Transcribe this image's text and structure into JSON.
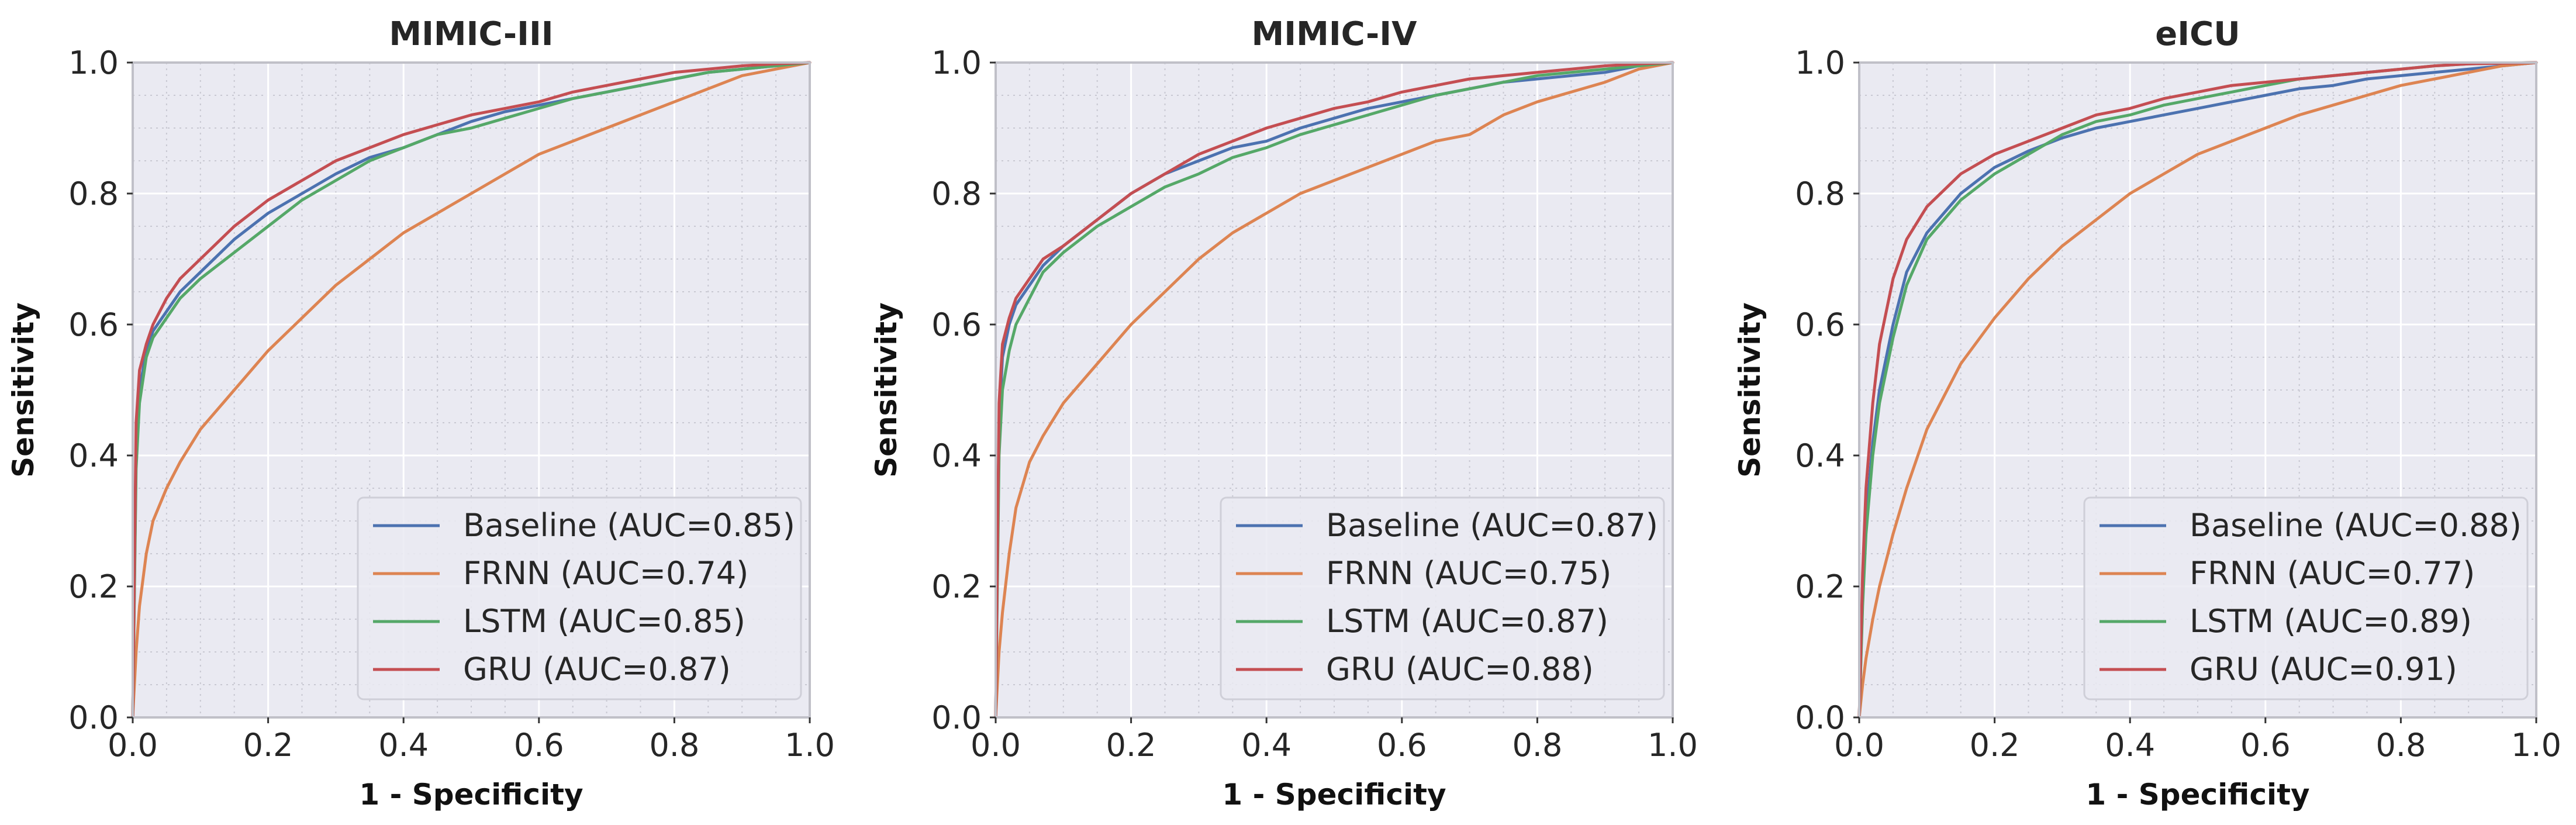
{
  "chart_data": [
    {
      "type": "line",
      "title": "MIMIC-III",
      "xlabel": "1 - Specificity",
      "ylabel": "Sensitivity",
      "xlim": [
        0,
        1
      ],
      "ylim": [
        0,
        1
      ],
      "ticks": [
        "0.0",
        "0.2",
        "0.4",
        "0.6",
        "0.8",
        "1.0"
      ],
      "grid": true,
      "legend_position": "lower-right",
      "series": [
        {
          "name": "Baseline (AUC=0.85)",
          "color": "#4c72b0",
          "x": [
            0,
            0.005,
            0.01,
            0.02,
            0.03,
            0.05,
            0.07,
            0.1,
            0.15,
            0.2,
            0.25,
            0.3,
            0.35,
            0.4,
            0.45,
            0.5,
            0.55,
            0.6,
            0.65,
            0.7,
            0.75,
            0.8,
            0.85,
            0.9,
            0.95,
            1.0
          ],
          "y": [
            0,
            0.4,
            0.5,
            0.56,
            0.59,
            0.62,
            0.65,
            0.68,
            0.73,
            0.77,
            0.8,
            0.83,
            0.855,
            0.87,
            0.89,
            0.91,
            0.925,
            0.935,
            0.945,
            0.955,
            0.965,
            0.975,
            0.985,
            0.99,
            0.995,
            1.0
          ]
        },
        {
          "name": "FRNN (AUC=0.74)",
          "color": "#dd8452",
          "x": [
            0,
            0.005,
            0.01,
            0.02,
            0.03,
            0.05,
            0.07,
            0.1,
            0.15,
            0.2,
            0.25,
            0.3,
            0.35,
            0.4,
            0.45,
            0.5,
            0.55,
            0.6,
            0.65,
            0.7,
            0.75,
            0.8,
            0.85,
            0.9,
            0.95,
            1.0
          ],
          "y": [
            0,
            0.1,
            0.17,
            0.25,
            0.3,
            0.35,
            0.39,
            0.44,
            0.5,
            0.56,
            0.61,
            0.66,
            0.7,
            0.74,
            0.77,
            0.8,
            0.83,
            0.86,
            0.88,
            0.9,
            0.92,
            0.94,
            0.96,
            0.98,
            0.99,
            1.0
          ]
        },
        {
          "name": "LSTM (AUC=0.85)",
          "color": "#55a868",
          "x": [
            0,
            0.005,
            0.01,
            0.02,
            0.03,
            0.05,
            0.07,
            0.1,
            0.15,
            0.2,
            0.25,
            0.3,
            0.35,
            0.4,
            0.45,
            0.5,
            0.55,
            0.6,
            0.65,
            0.7,
            0.75,
            0.8,
            0.85,
            0.9,
            0.95,
            1.0
          ],
          "y": [
            0,
            0.38,
            0.48,
            0.55,
            0.58,
            0.61,
            0.64,
            0.67,
            0.71,
            0.75,
            0.79,
            0.82,
            0.85,
            0.87,
            0.89,
            0.9,
            0.915,
            0.93,
            0.945,
            0.955,
            0.965,
            0.975,
            0.985,
            0.99,
            0.995,
            1.0
          ]
        },
        {
          "name": "GRU (AUC=0.87)",
          "color": "#c44e52",
          "x": [
            0,
            0.005,
            0.01,
            0.02,
            0.03,
            0.05,
            0.07,
            0.1,
            0.15,
            0.2,
            0.25,
            0.3,
            0.35,
            0.4,
            0.45,
            0.5,
            0.55,
            0.6,
            0.65,
            0.7,
            0.75,
            0.8,
            0.85,
            0.9,
            0.95,
            1.0
          ],
          "y": [
            0,
            0.45,
            0.53,
            0.57,
            0.6,
            0.64,
            0.67,
            0.7,
            0.75,
            0.79,
            0.82,
            0.85,
            0.87,
            0.89,
            0.905,
            0.92,
            0.93,
            0.94,
            0.955,
            0.965,
            0.975,
            0.985,
            0.99,
            0.995,
            0.998,
            1.0
          ]
        }
      ]
    },
    {
      "type": "line",
      "title": "MIMIC-IV",
      "xlabel": "1 - Specificity",
      "ylabel": "Sensitivity",
      "xlim": [
        0,
        1
      ],
      "ylim": [
        0,
        1
      ],
      "ticks": [
        "0.0",
        "0.2",
        "0.4",
        "0.6",
        "0.8",
        "1.0"
      ],
      "grid": true,
      "legend_position": "lower-right",
      "series": [
        {
          "name": "Baseline (AUC=0.87)",
          "color": "#4c72b0",
          "x": [
            0,
            0.005,
            0.01,
            0.02,
            0.03,
            0.05,
            0.07,
            0.1,
            0.15,
            0.2,
            0.25,
            0.3,
            0.35,
            0.4,
            0.45,
            0.5,
            0.55,
            0.6,
            0.65,
            0.7,
            0.75,
            0.8,
            0.85,
            0.9,
            0.95,
            1.0
          ],
          "y": [
            0,
            0.45,
            0.55,
            0.6,
            0.63,
            0.66,
            0.69,
            0.72,
            0.76,
            0.8,
            0.83,
            0.85,
            0.87,
            0.88,
            0.9,
            0.915,
            0.93,
            0.94,
            0.95,
            0.96,
            0.97,
            0.975,
            0.98,
            0.985,
            0.995,
            1.0
          ]
        },
        {
          "name": "FRNN (AUC=0.75)",
          "color": "#dd8452",
          "x": [
            0,
            0.005,
            0.01,
            0.02,
            0.03,
            0.05,
            0.07,
            0.1,
            0.15,
            0.2,
            0.25,
            0.3,
            0.35,
            0.4,
            0.45,
            0.5,
            0.55,
            0.6,
            0.65,
            0.7,
            0.75,
            0.8,
            0.85,
            0.9,
            0.95,
            1.0
          ],
          "y": [
            0,
            0.1,
            0.16,
            0.25,
            0.32,
            0.39,
            0.43,
            0.48,
            0.54,
            0.6,
            0.65,
            0.7,
            0.74,
            0.77,
            0.8,
            0.82,
            0.84,
            0.86,
            0.88,
            0.89,
            0.92,
            0.94,
            0.955,
            0.97,
            0.99,
            1.0
          ]
        },
        {
          "name": "LSTM (AUC=0.87)",
          "color": "#55a868",
          "x": [
            0,
            0.005,
            0.01,
            0.02,
            0.03,
            0.05,
            0.07,
            0.1,
            0.15,
            0.2,
            0.25,
            0.3,
            0.35,
            0.4,
            0.45,
            0.5,
            0.55,
            0.6,
            0.65,
            0.7,
            0.75,
            0.8,
            0.85,
            0.9,
            0.95,
            1.0
          ],
          "y": [
            0,
            0.4,
            0.5,
            0.56,
            0.6,
            0.64,
            0.68,
            0.71,
            0.75,
            0.78,
            0.81,
            0.83,
            0.855,
            0.87,
            0.89,
            0.905,
            0.92,
            0.935,
            0.95,
            0.96,
            0.97,
            0.98,
            0.985,
            0.99,
            0.995,
            1.0
          ]
        },
        {
          "name": "GRU (AUC=0.88)",
          "color": "#c44e52",
          "x": [
            0,
            0.005,
            0.01,
            0.02,
            0.03,
            0.05,
            0.07,
            0.1,
            0.15,
            0.2,
            0.25,
            0.3,
            0.35,
            0.4,
            0.45,
            0.5,
            0.55,
            0.6,
            0.65,
            0.7,
            0.75,
            0.8,
            0.85,
            0.9,
            0.95,
            1.0
          ],
          "y": [
            0,
            0.48,
            0.57,
            0.61,
            0.64,
            0.67,
            0.7,
            0.72,
            0.76,
            0.8,
            0.83,
            0.86,
            0.88,
            0.9,
            0.915,
            0.93,
            0.94,
            0.955,
            0.965,
            0.975,
            0.98,
            0.985,
            0.99,
            0.995,
            0.998,
            1.0
          ]
        }
      ]
    },
    {
      "type": "line",
      "title": "eICU",
      "xlabel": "1 - Specificity",
      "ylabel": "Sensitivity",
      "xlim": [
        0,
        1
      ],
      "ylim": [
        0,
        1
      ],
      "ticks": [
        "0.0",
        "0.2",
        "0.4",
        "0.6",
        "0.8",
        "1.0"
      ],
      "grid": true,
      "legend_position": "lower-right",
      "series": [
        {
          "name": "Baseline (AUC=0.88)",
          "color": "#4c72b0",
          "x": [
            0,
            0.005,
            0.01,
            0.02,
            0.03,
            0.05,
            0.07,
            0.1,
            0.15,
            0.2,
            0.25,
            0.3,
            0.35,
            0.4,
            0.45,
            0.5,
            0.55,
            0.6,
            0.65,
            0.7,
            0.75,
            0.8,
            0.85,
            0.9,
            0.95,
            1.0
          ],
          "y": [
            0,
            0.18,
            0.3,
            0.42,
            0.5,
            0.6,
            0.68,
            0.74,
            0.8,
            0.84,
            0.865,
            0.885,
            0.9,
            0.91,
            0.92,
            0.93,
            0.94,
            0.95,
            0.96,
            0.965,
            0.975,
            0.98,
            0.985,
            0.99,
            0.995,
            1.0
          ]
        },
        {
          "name": "FRNN (AUC=0.77)",
          "color": "#dd8452",
          "x": [
            0,
            0.005,
            0.01,
            0.02,
            0.03,
            0.05,
            0.07,
            0.1,
            0.15,
            0.2,
            0.25,
            0.3,
            0.35,
            0.4,
            0.45,
            0.5,
            0.55,
            0.6,
            0.65,
            0.7,
            0.75,
            0.8,
            0.85,
            0.9,
            0.95,
            1.0
          ],
          "y": [
            0,
            0.05,
            0.09,
            0.15,
            0.2,
            0.28,
            0.35,
            0.44,
            0.54,
            0.61,
            0.67,
            0.72,
            0.76,
            0.8,
            0.83,
            0.86,
            0.88,
            0.9,
            0.92,
            0.935,
            0.95,
            0.965,
            0.975,
            0.985,
            0.995,
            1.0
          ]
        },
        {
          "name": "LSTM (AUC=0.89)",
          "color": "#55a868",
          "x": [
            0,
            0.005,
            0.01,
            0.02,
            0.03,
            0.05,
            0.07,
            0.1,
            0.15,
            0.2,
            0.25,
            0.3,
            0.35,
            0.4,
            0.45,
            0.5,
            0.55,
            0.6,
            0.65,
            0.7,
            0.75,
            0.8,
            0.85,
            0.9,
            0.95,
            1.0
          ],
          "y": [
            0,
            0.17,
            0.28,
            0.4,
            0.48,
            0.58,
            0.66,
            0.73,
            0.79,
            0.83,
            0.86,
            0.89,
            0.91,
            0.92,
            0.935,
            0.945,
            0.955,
            0.965,
            0.975,
            0.98,
            0.985,
            0.99,
            0.995,
            0.998,
            0.999,
            1.0
          ]
        },
        {
          "name": "GRU (AUC=0.91)",
          "color": "#c44e52",
          "x": [
            0,
            0.005,
            0.01,
            0.02,
            0.03,
            0.05,
            0.07,
            0.1,
            0.15,
            0.2,
            0.25,
            0.3,
            0.35,
            0.4,
            0.45,
            0.5,
            0.55,
            0.6,
            0.65,
            0.7,
            0.75,
            0.8,
            0.85,
            0.9,
            0.95,
            1.0
          ],
          "y": [
            0,
            0.22,
            0.35,
            0.48,
            0.57,
            0.67,
            0.73,
            0.78,
            0.83,
            0.86,
            0.88,
            0.9,
            0.92,
            0.93,
            0.945,
            0.955,
            0.965,
            0.97,
            0.975,
            0.98,
            0.985,
            0.99,
            0.995,
            0.998,
            0.999,
            1.0
          ]
        }
      ]
    }
  ]
}
